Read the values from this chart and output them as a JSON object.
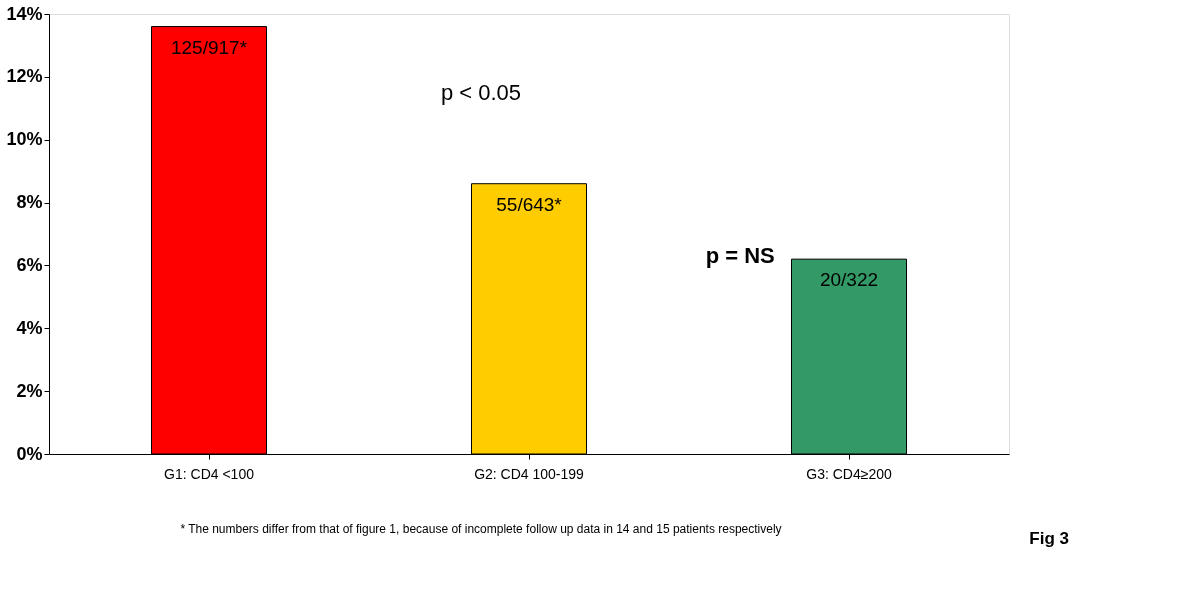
{
  "chart_data": {
    "type": "bar",
    "categories": [
      "G1: CD4 <100",
      "G2: CD4 100-199",
      "G3: CD4≥200"
    ],
    "values": [
      13.6,
      8.6,
      6.2
    ],
    "colors": [
      "#ff0000",
      "#ffcc00",
      "#339966"
    ],
    "value_labels": [
      "125/917*",
      "55/643*",
      "20/322"
    ],
    "ylim": [
      0,
      14
    ],
    "yticks": [
      {
        "value": 0,
        "label": "0%"
      },
      {
        "value": 2,
        "label": "2%"
      },
      {
        "value": 4,
        "label": "4%"
      },
      {
        "value": 6,
        "label": "6%"
      },
      {
        "value": 8,
        "label": "8%"
      },
      {
        "value": 10,
        "label": "10%"
      },
      {
        "value": 12,
        "label": "12%"
      },
      {
        "value": 14,
        "label": "14%"
      }
    ],
    "grid": false,
    "annotations": [
      "p < 0.05",
      "p = NS",
      "* The numbers differ from that of figure 1, because of incomplete follow up data in 14 and 15 patients respectively",
      "Fig 3"
    ]
  }
}
